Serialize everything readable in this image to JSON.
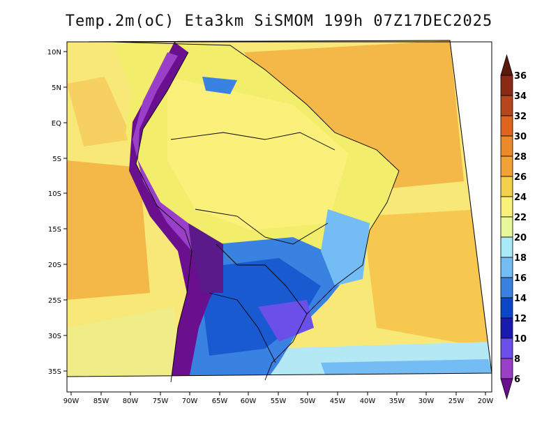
{
  "title": "Temp.2m(oC) Eta3km SiSMOM 199h 07Z17DEC2025",
  "map": {
    "variable": "2 m temperature",
    "units": "oC",
    "lat_ticks": [
      "10N",
      "5N",
      "EQ",
      "5S",
      "10S",
      "15S",
      "20S",
      "25S",
      "30S",
      "35S"
    ],
    "lon_ticks": [
      "90W",
      "85W",
      "80W",
      "75W",
      "70W",
      "65W",
      "60W",
      "55W",
      "50W",
      "45W",
      "40W",
      "35W",
      "30W",
      "25W",
      "20W"
    ]
  },
  "colorbar": {
    "levels": [
      "6",
      "8",
      "10",
      "12",
      "14",
      "16",
      "18",
      "20",
      "22",
      "24",
      "26",
      "28",
      "30",
      "32",
      "34",
      "36"
    ],
    "colors": [
      "#6a0f8e",
      "#9a3fc8",
      "#6a4fe8",
      "#1a1ab0",
      "#0a46c8",
      "#3a82e2",
      "#74bcf4",
      "#a8eaf8",
      "#e6f89a",
      "#faf07a",
      "#f4d04a",
      "#f3a238",
      "#ec8a2a",
      "#e0641c",
      "#b8461c",
      "#8a2a14",
      "#5a1a0c"
    ]
  }
}
